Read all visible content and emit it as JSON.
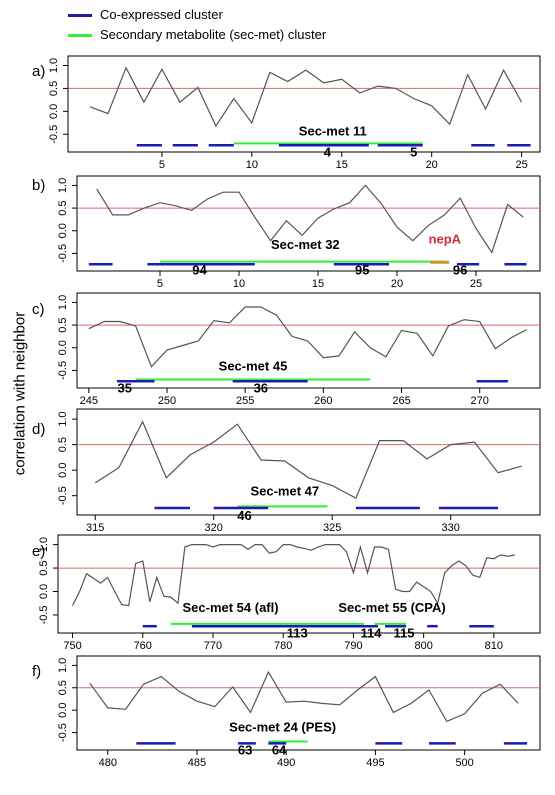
{
  "legend": {
    "coexpressed": {
      "label": "Co-expressed cluster",
      "color": "#1c1cb4"
    },
    "secmet": {
      "label": "Secondary metabolite (sec-met) cluster",
      "color": "#33ee33"
    }
  },
  "ylabel": "correlation with neighbor",
  "colors": {
    "line": "#555555",
    "threshold": "#e06666",
    "nepA": "#d03030",
    "nepA_bar": "#c8962a"
  },
  "chart_data": [
    {
      "type": "line",
      "panel": "a)",
      "x": [
        1,
        2,
        3,
        4,
        5,
        6,
        7,
        8,
        9,
        10,
        11,
        12,
        13,
        14,
        15,
        16,
        17,
        18,
        19,
        20,
        21,
        22,
        23,
        24,
        25
      ],
      "values": [
        0.1,
        -0.05,
        0.95,
        0.2,
        0.92,
        0.2,
        0.52,
        -0.32,
        0.28,
        -0.25,
        0.85,
        0.65,
        0.9,
        0.62,
        0.7,
        0.4,
        0.55,
        0.5,
        0.28,
        0.12,
        -0.28,
        0.8,
        0.05,
        0.9,
        0.2
      ],
      "threshold": 0.5,
      "xlim": [
        0,
        25.8
      ],
      "ylim": [
        -0.8,
        1.12
      ],
      "xticks": [
        5,
        10,
        15,
        20,
        25
      ],
      "yticks": [
        -0.5,
        0.0,
        0.5,
        1.0
      ],
      "coexpressed": [
        [
          3.6,
          5.0
        ],
        [
          5.6,
          7.0
        ],
        [
          7.6,
          9.0
        ],
        [
          11.5,
          16.5
        ],
        [
          17.0,
          19.5
        ],
        [
          22.2,
          23.5
        ],
        [
          24.2,
          25.5
        ]
      ],
      "secmet": [
        [
          9,
          19.5
        ]
      ],
      "secmet_y": -0.7,
      "coexp_y": -0.74,
      "labels": [
        {
          "text": "Sec-met 11",
          "x": 14.5,
          "y": -0.53
        },
        {
          "text": "4",
          "x": 14.2,
          "y": -0.98
        },
        {
          "text": "5",
          "x": 19.0,
          "y": -0.98
        }
      ]
    },
    {
      "type": "line",
      "panel": "b)",
      "x": [
        1,
        2,
        3,
        4,
        5,
        6,
        7,
        8,
        9,
        10,
        11,
        12,
        13,
        14,
        15,
        16,
        17,
        18,
        19,
        20,
        21,
        22,
        23,
        24,
        25,
        26,
        27,
        28
      ],
      "values": [
        0.92,
        0.35,
        0.35,
        0.5,
        0.62,
        0.55,
        0.45,
        0.7,
        0.85,
        0.85,
        0.3,
        -0.22,
        0.22,
        -0.1,
        0.28,
        0.48,
        0.62,
        1.0,
        0.6,
        0.08,
        -0.22,
        0.12,
        0.35,
        0.72,
        0.05,
        -0.48,
        0.58,
        0.3
      ],
      "threshold": 0.5,
      "xlim": [
        0,
        28.8
      ],
      "ylim": [
        -0.8,
        1.12
      ],
      "xticks": [
        5,
        10,
        15,
        20,
        25
      ],
      "yticks": [
        -0.5,
        0.0,
        0.5,
        1.0
      ],
      "coexpressed": [
        [
          0.5,
          2.0
        ],
        [
          4.2,
          11.0
        ],
        [
          16.0,
          19.5
        ],
        [
          23.8,
          25.2
        ],
        [
          26.8,
          28.2
        ]
      ],
      "secmet": [
        [
          5,
          23
        ]
      ],
      "secmet_y": -0.68,
      "coexp_y": -0.74,
      "nepA": {
        "text": "nepA",
        "x": 22.0,
        "y": -0.28,
        "bar": [
          22.1,
          23.3
        ]
      },
      "labels": [
        {
          "text": "Sec-met 32",
          "x": 14.2,
          "y": -0.4
        },
        {
          "text": "94",
          "x": 7.5,
          "y": -0.97
        },
        {
          "text": "95",
          "x": 17.8,
          "y": -0.97
        },
        {
          "text": "96",
          "x": 24.0,
          "y": -0.97
        }
      ]
    },
    {
      "type": "line",
      "panel": "c)",
      "x": [
        245,
        246,
        247,
        248,
        249,
        250,
        251,
        252,
        253,
        254,
        255,
        256,
        257,
        258,
        259,
        260,
        261,
        262,
        263,
        264,
        265,
        266,
        267,
        268,
        269,
        270,
        271,
        272,
        273
      ],
      "values": [
        0.42,
        0.58,
        0.58,
        0.48,
        -0.42,
        -0.05,
        0.05,
        0.15,
        0.6,
        0.55,
        0.9,
        0.9,
        0.72,
        0.25,
        0.15,
        -0.22,
        -0.18,
        0.35,
        0.0,
        -0.2,
        0.38,
        0.32,
        -0.18,
        0.48,
        0.62,
        0.58,
        -0.02,
        0.22,
        0.4
      ],
      "threshold": 0.5,
      "xlim": [
        244.5,
        273.6
      ],
      "ylim": [
        -0.8,
        1.12
      ],
      "xticks": [
        245,
        250,
        255,
        260,
        265,
        270
      ],
      "yticks": [
        -0.5,
        0.0,
        0.5,
        1.0
      ],
      "coexpressed": [
        [
          246.8,
          249.2
        ],
        [
          254.2,
          259.0
        ],
        [
          269.8,
          271.8
        ]
      ],
      "secmet": [
        [
          248,
          263
        ]
      ],
      "secmet_y": -0.7,
      "coexp_y": -0.74,
      "labels": [
        {
          "text": "Sec-met 45",
          "x": 255.5,
          "y": -0.5
        },
        {
          "text": "35",
          "x": 247.3,
          "y": -0.99
        },
        {
          "text": "36",
          "x": 256.0,
          "y": -0.99
        }
      ]
    },
    {
      "type": "line",
      "panel": "d)",
      "x": [
        315,
        316,
        317,
        318,
        319,
        320,
        321,
        322,
        323,
        324,
        325,
        326,
        327,
        328,
        329,
        330,
        331,
        332,
        333
      ],
      "values": [
        -0.25,
        0.05,
        0.95,
        -0.15,
        0.3,
        0.55,
        0.9,
        0.2,
        0.18,
        -0.15,
        -0.3,
        -0.55,
        0.58,
        0.58,
        0.22,
        0.5,
        0.55,
        -0.05,
        0.08
      ],
      "threshold": 0.5,
      "xlim": [
        314.4,
        333.6
      ],
      "ylim": [
        -0.8,
        1.12
      ],
      "xticks": [
        315,
        320,
        325,
        330
      ],
      "yticks": [
        -0.5,
        0.0,
        0.5,
        1.0
      ],
      "coexpressed": [
        [
          317.5,
          319.0
        ],
        [
          320.0,
          322.3
        ],
        [
          326.0,
          328.7
        ],
        [
          329.5,
          332.0
        ]
      ],
      "secmet": [
        [
          321,
          324.8
        ]
      ],
      "secmet_y": -0.71,
      "coexp_y": -0.74,
      "labels": [
        {
          "text": "Sec-met 47",
          "x": 323.0,
          "y": -0.5
        },
        {
          "text": "46",
          "x": 321.3,
          "y": -0.98
        }
      ]
    },
    {
      "type": "line",
      "panel": "e)",
      "x": [
        750,
        751,
        752,
        753,
        754,
        755,
        756,
        757,
        758,
        759,
        760,
        761,
        762,
        763,
        764,
        765,
        766,
        767,
        768,
        769,
        770,
        771,
        772,
        773,
        774,
        775,
        776,
        777,
        778,
        779,
        780,
        781,
        782,
        783,
        784,
        785,
        786,
        787,
        788,
        789,
        790,
        791,
        792,
        793,
        794,
        795,
        796,
        797,
        798,
        799,
        800,
        801,
        802,
        803,
        804,
        805,
        806,
        807,
        808,
        809,
        810,
        811,
        812,
        813
      ],
      "values": [
        -0.3,
        0.0,
        0.38,
        0.28,
        0.18,
        0.3,
        0.0,
        -0.28,
        -0.3,
        0.6,
        0.65,
        -0.22,
        0.3,
        -0.1,
        -0.12,
        -0.25,
        0.95,
        1.0,
        1.0,
        1.0,
        0.95,
        1.0,
        1.0,
        1.0,
        1.0,
        0.9,
        1.0,
        1.0,
        0.82,
        0.85,
        1.0,
        1.0,
        0.95,
        0.92,
        0.88,
        0.95,
        1.0,
        1.0,
        1.0,
        0.85,
        0.4,
        0.95,
        0.4,
        0.95,
        0.95,
        0.9,
        0.05,
        0.0,
        0.0,
        0.2,
        0.1,
        0.0,
        -0.25,
        0.4,
        0.55,
        0.65,
        0.55,
        0.35,
        0.3,
        0.72,
        0.7,
        0.78,
        0.75,
        0.78
      ],
      "threshold": 0.5,
      "xlim": [
        748.5,
        816
      ],
      "ylim": [
        -0.8,
        1.12
      ],
      "xticks": [
        750,
        760,
        770,
        780,
        790,
        800,
        810
      ],
      "yticks": [
        -0.5,
        0.0,
        0.5,
        1.0
      ],
      "coexpressed": [
        [
          760,
          762
        ],
        [
          767,
          793.5
        ],
        [
          794.5,
          797.5
        ],
        [
          800.5,
          802
        ],
        [
          806.5,
          810
        ]
      ],
      "secmet": [
        [
          764,
          791.5
        ],
        [
          793,
          797.5
        ]
      ],
      "secmet_y": -0.69,
      "coexp_y": -0.74,
      "labels": [
        {
          "text": "Sec-met 54 (afl)",
          "x": 772.5,
          "y": -0.44
        },
        {
          "text": "Sec-met 55 (CPA)",
          "x": 795.5,
          "y": -0.44
        },
        {
          "text": "113",
          "x": 782.0,
          "y": -0.98
        },
        {
          "text": "114",
          "x": 792.5,
          "y": -0.98
        },
        {
          "text": "115",
          "x": 797.2,
          "y": -0.98
        }
      ]
    },
    {
      "type": "line",
      "panel": "f)",
      "x": [
        479,
        480,
        481,
        482,
        483,
        484,
        485,
        486,
        487,
        488,
        489,
        490,
        491,
        492,
        493,
        494,
        495,
        496,
        497,
        498,
        499,
        500,
        501,
        502,
        503
      ],
      "values": [
        0.6,
        0.05,
        0.02,
        0.58,
        0.75,
        0.42,
        0.2,
        0.08,
        0.52,
        -0.05,
        0.85,
        0.18,
        0.2,
        0.15,
        0.12,
        0.45,
        0.75,
        -0.05,
        0.15,
        0.45,
        -0.25,
        -0.08,
        0.38,
        0.58,
        0.15
      ],
      "threshold": 0.5,
      "xlim": [
        478.5,
        504
      ],
      "ylim": [
        -0.8,
        1.12
      ],
      "xticks": [
        480,
        485,
        490,
        495,
        500
      ],
      "yticks": [
        -0.5,
        0.0,
        0.5,
        1.0
      ],
      "coexpressed": [
        [
          481.6,
          483.8
        ],
        [
          487.3,
          488.3
        ],
        [
          489.0,
          490.0
        ],
        [
          495.0,
          496.5
        ],
        [
          498.0,
          499.5
        ],
        [
          502.2,
          503.5
        ]
      ],
      "secmet": [
        [
          489,
          491.2
        ]
      ],
      "secmet_y": -0.7,
      "coexp_y": -0.74,
      "labels": [
        {
          "text": "Sec-met 24 (PES)",
          "x": 489.8,
          "y": -0.48
        },
        {
          "text": "63",
          "x": 487.7,
          "y": -0.99
        },
        {
          "text": "64",
          "x": 489.6,
          "y": -0.99
        }
      ]
    }
  ]
}
